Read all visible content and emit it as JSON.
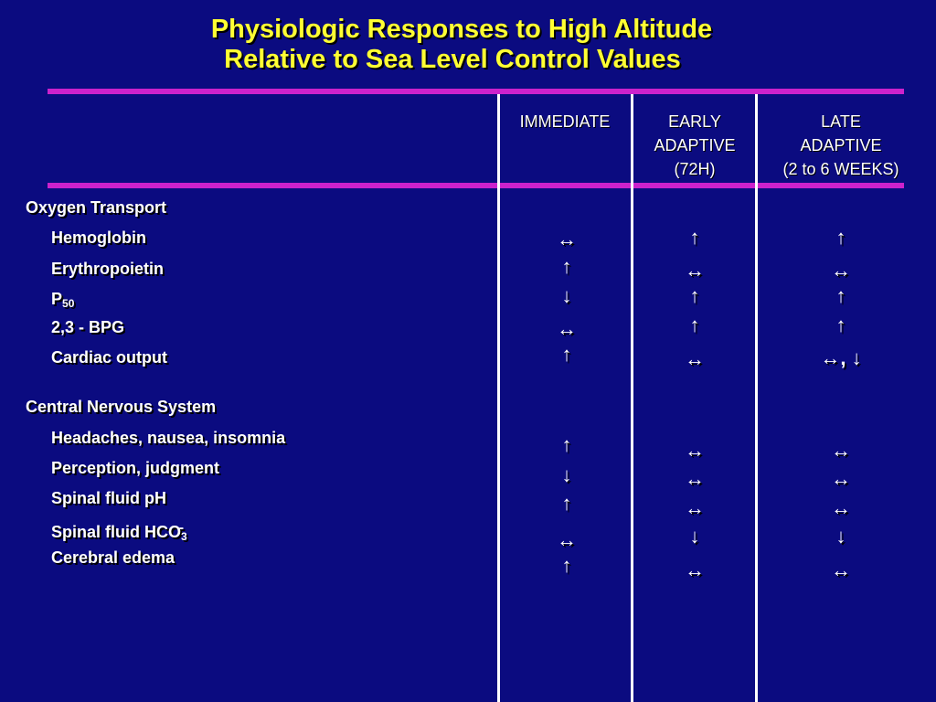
{
  "title": {
    "line1": "Physiologic Responses to High Altitude",
    "line2": "Relative to Sea Level Control Values"
  },
  "columns": [
    {
      "lines": [
        "IMMEDIATE"
      ]
    },
    {
      "lines": [
        "EARLY",
        "ADAPTIVE",
        "(72H)"
      ]
    },
    {
      "lines": [
        "LATE",
        "ADAPTIVE",
        "(2 to 6 WEEKS)"
      ]
    }
  ],
  "sections": [
    {
      "label": "Oxygen Transport",
      "rows": [
        {
          "label": "Hemoglobin",
          "sub": "",
          "sup": "",
          "values": [
            "↔",
            "↑",
            "↑"
          ]
        },
        {
          "label": "Erythropoietin",
          "sub": "",
          "sup": "",
          "values": [
            "↑",
            "↔",
            "↔"
          ]
        },
        {
          "label": "P",
          "sub": "50",
          "sup": "",
          "values": [
            "↓",
            "↑",
            "↑"
          ]
        },
        {
          "label": "2,3 - BPG",
          "sub": "",
          "sup": "",
          "values": [
            "↔",
            "↑",
            "↑"
          ]
        },
        {
          "label": "Cardiac output",
          "sub": "",
          "sup": "",
          "values": [
            "↑",
            "↔",
            "↔, ↓"
          ]
        }
      ]
    },
    {
      "label": "Central Nervous System",
      "rows": [
        {
          "label": "Headaches,  nausea, insomnia",
          "sub": "",
          "sup": "",
          "values": [
            "↑",
            "↔",
            "↔"
          ]
        },
        {
          "label": "Perception,  judgment",
          "sub": "",
          "sup": "",
          "values": [
            "↓",
            "↔",
            "↔"
          ]
        },
        {
          "label": "Spinal fluid  pH",
          "sub": "",
          "sup": "",
          "values": [
            "↑",
            "↔",
            "↔"
          ]
        },
        {
          "label": "Spinal fluid  HCO",
          "sub": "3",
          "sup": "-",
          "values": [
            "↔",
            "↓",
            "↓"
          ]
        },
        {
          "label": "Cerebral  edema",
          "sub": "",
          "sup": "",
          "values": [
            "↑",
            "↔",
            "↔"
          ]
        }
      ]
    }
  ],
  "colors": {
    "background": "#0b0b80",
    "title": "#ffff33",
    "rule": "#cc22cc",
    "text": "#ffffff"
  }
}
